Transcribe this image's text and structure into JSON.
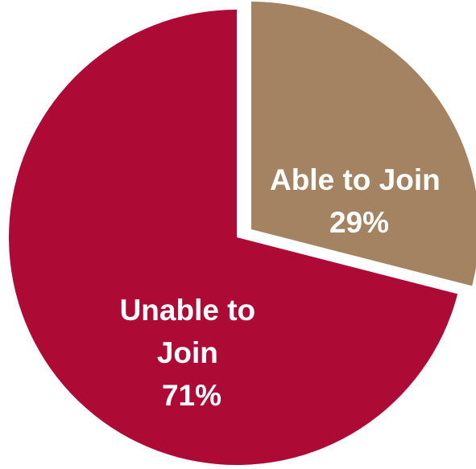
{
  "chart_data": {
    "type": "pie",
    "slices": [
      {
        "label_lines": [
          "Unable to",
          "Join"
        ],
        "percent_label": "71%",
        "value": 71,
        "color": "#ad0a36"
      },
      {
        "label_lines": [
          "Able to Join"
        ],
        "percent_label": "29%",
        "value": 29,
        "color": "#a48362",
        "exploded": true
      }
    ],
    "start": "12 o'clock",
    "direction": "counterclockwise for the larger slice",
    "legend": "none"
  }
}
